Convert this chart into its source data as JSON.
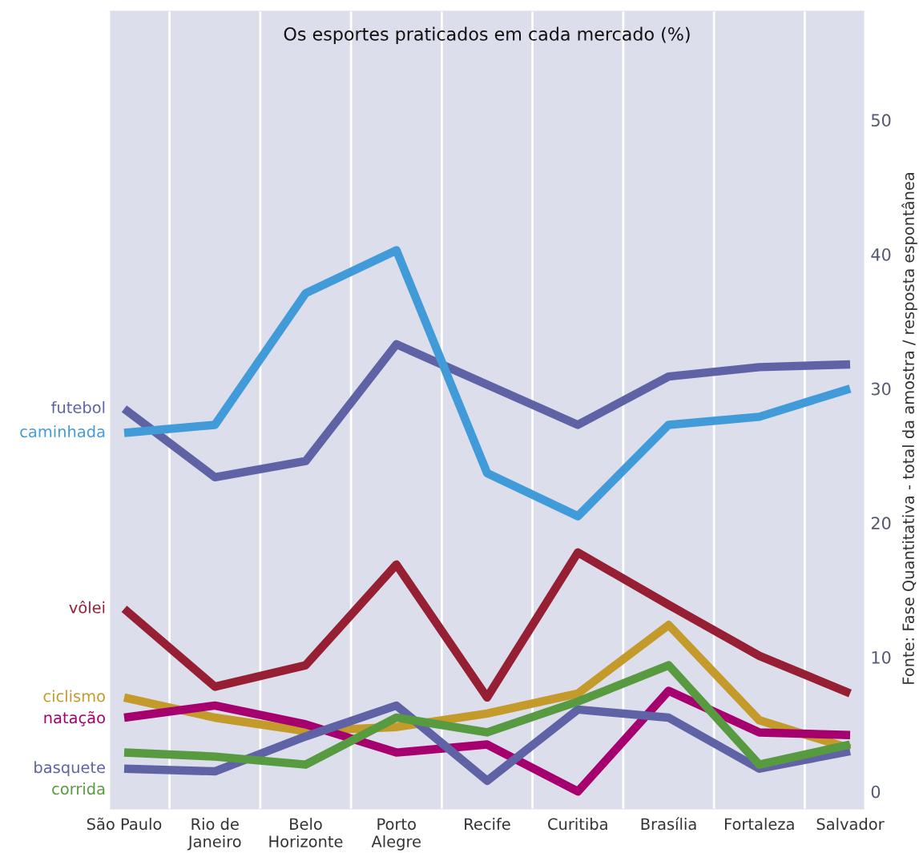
{
  "chart_data": {
    "type": "line",
    "title": "Os esportes praticados em cada mercado (%)",
    "categories": [
      "São Paulo",
      "Rio de\nJaneiro",
      "Belo\nHorizonte",
      "Porto\nAlegre",
      "Recife",
      "Curitiba",
      "Brasília",
      "Fortaleza",
      "Salvador"
    ],
    "series": [
      {
        "name": "futebol",
        "color": "#5f63a5",
        "values": [
          28.5,
          23.4,
          24.6,
          33.3,
          30.3,
          27.3,
          30.9,
          31.6,
          31.8
        ]
      },
      {
        "name": "caminhada",
        "color": "#419bd9",
        "values": [
          26.7,
          27.3,
          37.1,
          40.3,
          23.7,
          20.5,
          27.3,
          27.9,
          30.0
        ]
      },
      {
        "name": "vôlei",
        "color": "#961f33",
        "values": [
          13.6,
          7.8,
          9.4,
          16.9,
          7.0,
          17.8,
          13.9,
          10.1,
          7.3
        ]
      },
      {
        "name": "ciclismo",
        "color": "#c49a2b",
        "values": [
          7.0,
          5.5,
          4.5,
          4.8,
          5.8,
          7.3,
          12.4,
          5.3,
          3.2
        ]
      },
      {
        "name": "natação",
        "color": "#a6006f",
        "values": [
          5.5,
          6.4,
          5.0,
          2.9,
          3.5,
          0,
          7.5,
          4.4,
          4.2
        ]
      },
      {
        "name": "basquete",
        "color": "#5f63a5",
        "values": [
          1.7,
          1.5,
          4.1,
          6.4,
          0.8,
          6.1,
          5.5,
          1.7,
          3.0
        ]
      },
      {
        "name": "corrida",
        "color": "#579a3f",
        "values": [
          2.9,
          2.6,
          2.0,
          5.5,
          4.4,
          6.7,
          9.4,
          2.0,
          3.5
        ]
      }
    ],
    "ylim": [
      -1.3,
      58.1
    ],
    "yticks": [
      0,
      10,
      20,
      30,
      40,
      50
    ],
    "grid": "x",
    "annotations": [
      "Fonte: Fase Quantitativa - total da amostra / resposta espontânea"
    ]
  }
}
